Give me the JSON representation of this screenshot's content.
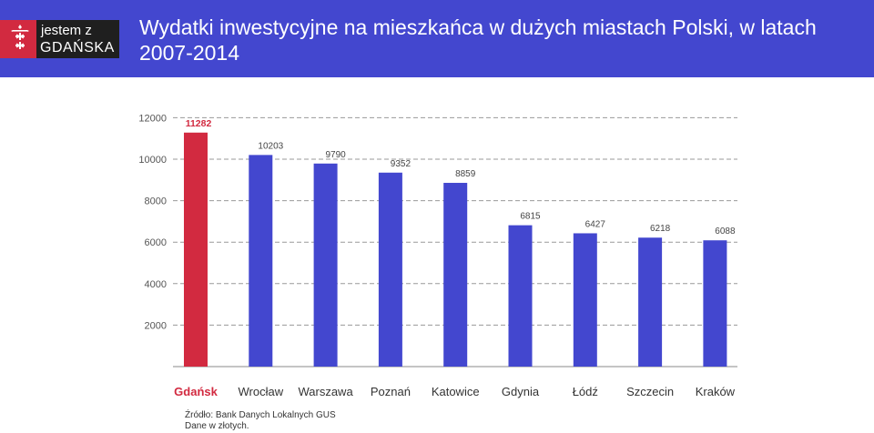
{
  "header": {
    "title": "Wydatki inwestycyjne na mieszkańca w dużych miastach Polski, w latach 2007-2014",
    "logo_line1": "jestem z",
    "logo_line2": "GDAŃSKA"
  },
  "colors": {
    "header_bg": "#4347cf",
    "bar": "#4347cf",
    "highlight": "#d22a40"
  },
  "chart_data": {
    "type": "bar",
    "title": "Wydatki inwestycyjne na mieszkańca w dużych miastach Polski, w latach 2007-2014",
    "categories": [
      "Gdańsk",
      "Wrocław",
      "Warszawa",
      "Poznań",
      "Katowice",
      "Gdynia",
      "Łódź",
      "Szczecin",
      "Kraków"
    ],
    "values": [
      11282,
      10203,
      9790,
      9352,
      8859,
      6815,
      6427,
      6218,
      6088
    ],
    "highlight_index": 0,
    "y_ticks": [
      2000,
      4000,
      6000,
      8000,
      10000,
      12000
    ],
    "grid": true,
    "xlabel": "",
    "ylabel": ""
  },
  "footer": {
    "source": "Źródło: Bank Danych Lokalnych GUS",
    "note": "Dane w złotych."
  }
}
